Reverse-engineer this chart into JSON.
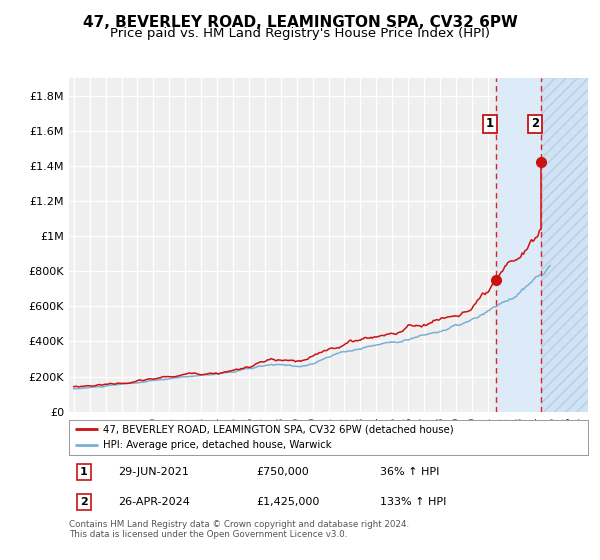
{
  "title": "47, BEVERLEY ROAD, LEAMINGTON SPA, CV32 6PW",
  "subtitle": "Price paid vs. HM Land Registry's House Price Index (HPI)",
  "title_fontsize": 11,
  "subtitle_fontsize": 9.5,
  "background_color": "#ffffff",
  "plot_bg_color": "#efefef",
  "grid_color": "#ffffff",
  "hpi_line_color": "#7bafd4",
  "price_line_color": "#cc1111",
  "highlight_bg_color": "#ddeaf8",
  "hatch_bg_color": "#d0e2f5",
  "dashed_line_color": "#dd2222",
  "marker_color": "#cc1111",
  "legend_label_price": "47, BEVERLEY ROAD, LEAMINGTON SPA, CV32 6PW (detached house)",
  "legend_label_hpi": "HPI: Average price, detached house, Warwick",
  "annotation1_date": "29-JUN-2021",
  "annotation1_price": "£750,000",
  "annotation1_pct": "36% ↑ HPI",
  "annotation2_date": "26-APR-2024",
  "annotation2_price": "£1,425,000",
  "annotation2_pct": "133% ↑ HPI",
  "footer_text": "Contains HM Land Registry data © Crown copyright and database right 2024.\nThis data is licensed under the Open Government Licence v3.0.",
  "ylim": [
    0,
    1900000
  ],
  "yticks": [
    0,
    200000,
    400000,
    600000,
    800000,
    1000000,
    1200000,
    1400000,
    1600000,
    1800000
  ],
  "ytick_labels": [
    "£0",
    "£200K",
    "£400K",
    "£600K",
    "£800K",
    "£1M",
    "£1.2M",
    "£1.4M",
    "£1.6M",
    "£1.8M"
  ],
  "xlim_start": 1994.7,
  "xlim_end": 2027.3,
  "sale1_x": 2021.49,
  "sale1_y": 750000,
  "sale2_x": 2024.32,
  "sale2_y": 1425000,
  "highlight_start": 2021.49,
  "highlight_end": 2024.32,
  "hatch_start": 2024.32,
  "hatch_end": 2027.3
}
